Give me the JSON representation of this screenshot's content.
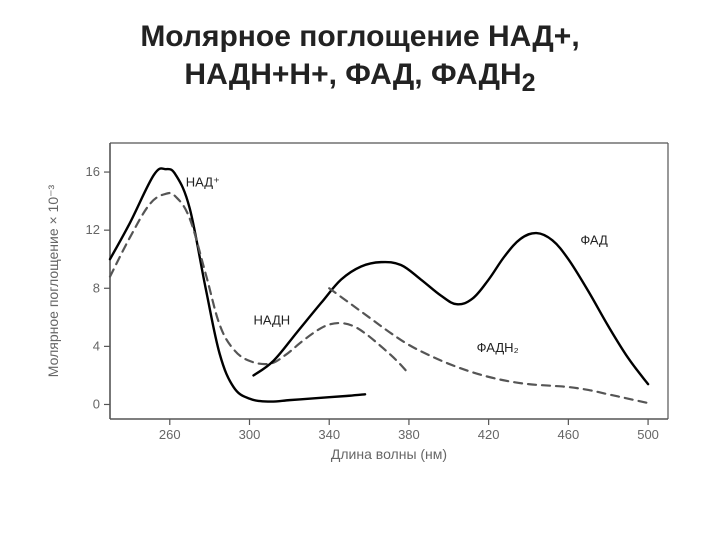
{
  "title_line1": "Молярное поглощение НАД+,",
  "title_line2": "НАДН+Н+, ФАД, ФАДН",
  "title_sub": "2",
  "chart": {
    "type": "line",
    "background_color": "#ffffff",
    "axis_color": "#555555",
    "tick_color": "#555555",
    "axis_font_size": 14,
    "tick_font_size": 13,
    "label_font_size": 13,
    "xlabel": "Длина волны (нм)",
    "ylabel": "Молярное поглощение × 10⁻³",
    "xlim": [
      230,
      510
    ],
    "ylim": [
      -1,
      18
    ],
    "xticks": [
      260,
      300,
      340,
      380,
      420,
      460,
      500
    ],
    "yticks": [
      0,
      4,
      8,
      12,
      16
    ],
    "series": {
      "nad_plus": {
        "label": "НАД⁺",
        "color": "#000000",
        "line_width": 2.4,
        "dash": "none",
        "data": [
          [
            230,
            10.0
          ],
          [
            240,
            12.5
          ],
          [
            252,
            15.8
          ],
          [
            258,
            16.2
          ],
          [
            263,
            15.8
          ],
          [
            270,
            13.5
          ],
          [
            278,
            8.0
          ],
          [
            285,
            3.5
          ],
          [
            292,
            1.2
          ],
          [
            300,
            0.4
          ],
          [
            310,
            0.2
          ],
          [
            320,
            0.3
          ],
          [
            330,
            0.4
          ],
          [
            340,
            0.5
          ],
          [
            350,
            0.6
          ],
          [
            358,
            0.7
          ]
        ],
        "label_pos": [
          268,
          15.0
        ]
      },
      "nadh": {
        "label": "НАДН",
        "color": "#555555",
        "line_width": 2.2,
        "dash": "8 6",
        "data": [
          [
            230,
            8.8
          ],
          [
            240,
            11.5
          ],
          [
            250,
            13.8
          ],
          [
            258,
            14.5
          ],
          [
            263,
            14.3
          ],
          [
            270,
            12.8
          ],
          [
            278,
            9.0
          ],
          [
            285,
            5.5
          ],
          [
            292,
            3.8
          ],
          [
            300,
            3.0
          ],
          [
            310,
            2.8
          ],
          [
            318,
            3.4
          ],
          [
            326,
            4.3
          ],
          [
            334,
            5.1
          ],
          [
            340,
            5.5
          ],
          [
            346,
            5.6
          ],
          [
            352,
            5.4
          ],
          [
            358,
            4.9
          ],
          [
            366,
            4.0
          ],
          [
            374,
            3.0
          ],
          [
            380,
            2.1
          ]
        ],
        "label_pos": [
          302,
          5.5
        ]
      },
      "fad": {
        "label": "ФАД",
        "color": "#000000",
        "line_width": 2.4,
        "dash": "none",
        "data": [
          [
            302,
            2.0
          ],
          [
            312,
            3.0
          ],
          [
            324,
            5.0
          ],
          [
            336,
            7.0
          ],
          [
            346,
            8.6
          ],
          [
            356,
            9.5
          ],
          [
            366,
            9.8
          ],
          [
            376,
            9.6
          ],
          [
            386,
            8.6
          ],
          [
            396,
            7.5
          ],
          [
            404,
            6.9
          ],
          [
            412,
            7.3
          ],
          [
            420,
            8.6
          ],
          [
            428,
            10.2
          ],
          [
            436,
            11.4
          ],
          [
            444,
            11.8
          ],
          [
            452,
            11.3
          ],
          [
            460,
            10.0
          ],
          [
            470,
            7.8
          ],
          [
            480,
            5.4
          ],
          [
            490,
            3.2
          ],
          [
            500,
            1.4
          ]
        ],
        "label_pos": [
          466,
          11.0
        ]
      },
      "fadh2": {
        "label": "ФАДН₂",
        "color": "#555555",
        "line_width": 2.2,
        "dash": "8 6",
        "data": [
          [
            340,
            8.0
          ],
          [
            350,
            7.0
          ],
          [
            360,
            6.0
          ],
          [
            370,
            5.0
          ],
          [
            380,
            4.1
          ],
          [
            390,
            3.4
          ],
          [
            400,
            2.8
          ],
          [
            410,
            2.3
          ],
          [
            420,
            1.9
          ],
          [
            430,
            1.6
          ],
          [
            440,
            1.4
          ],
          [
            450,
            1.3
          ],
          [
            460,
            1.2
          ],
          [
            470,
            1.0
          ],
          [
            480,
            0.7
          ],
          [
            490,
            0.4
          ],
          [
            500,
            0.1
          ]
        ],
        "label_pos": [
          414,
          3.6
        ]
      }
    }
  }
}
